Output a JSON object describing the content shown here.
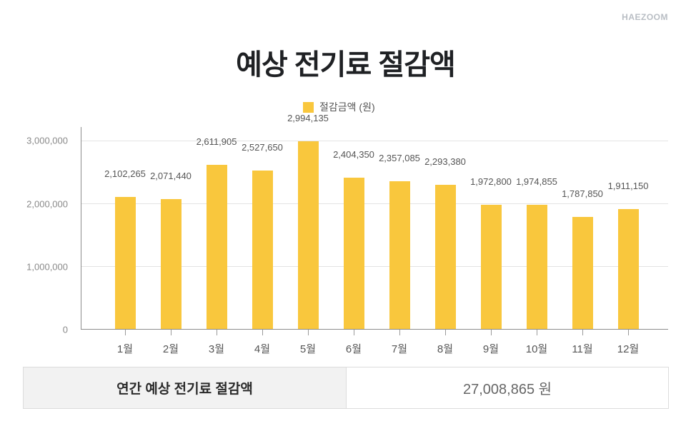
{
  "brand": "HAEZOOM",
  "title": "예상 전기료 절감액",
  "legend": {
    "label": "절감금액 (원)",
    "color": "#f9c73d"
  },
  "y_ticks": [
    "3,000,000",
    "2,000,000",
    "1,000,000",
    "0"
  ],
  "bars": [
    {
      "month": "1월",
      "label": "2,102,265"
    },
    {
      "month": "2월",
      "label": "2,071,440"
    },
    {
      "month": "3월",
      "label": "2,611,905"
    },
    {
      "month": "4월",
      "label": "2,527,650"
    },
    {
      "month": "5월",
      "label": "2,994,135"
    },
    {
      "month": "6월",
      "label": "2,404,350"
    },
    {
      "month": "7월",
      "label": "2,357,085"
    },
    {
      "month": "8월",
      "label": "2,293,380"
    },
    {
      "month": "9월",
      "label": "1,972,800"
    },
    {
      "month": "10월",
      "label": "1,974,855"
    },
    {
      "month": "11월",
      "label": "1,787,850"
    },
    {
      "month": "12월",
      "label": "1,911,150"
    }
  ],
  "summary": {
    "label": "연간 예상 전기료 절감액",
    "value": "27,008,865 원"
  },
  "chart_data": {
    "type": "bar",
    "title": "예상 전기료 절감액",
    "categories": [
      "1월",
      "2월",
      "3월",
      "4월",
      "5월",
      "6월",
      "7월",
      "8월",
      "9월",
      "10월",
      "11월",
      "12월"
    ],
    "series": [
      {
        "name": "절감금액 (원)",
        "color": "#f9c73d",
        "values": [
          2102265,
          2071440,
          2611905,
          2527650,
          2994135,
          2404350,
          2357085,
          2293380,
          1972800,
          1974855,
          1787850,
          1911150
        ]
      }
    ],
    "xlabel": "",
    "ylabel": "",
    "ylim": [
      0,
      3000000
    ],
    "yticks": [
      0,
      1000000,
      2000000,
      3000000
    ],
    "grid": true,
    "legend_position": "top",
    "annotations": [
      "HAEZOOM",
      "연간 예상 전기료 절감액: 27,008,865 원"
    ]
  }
}
